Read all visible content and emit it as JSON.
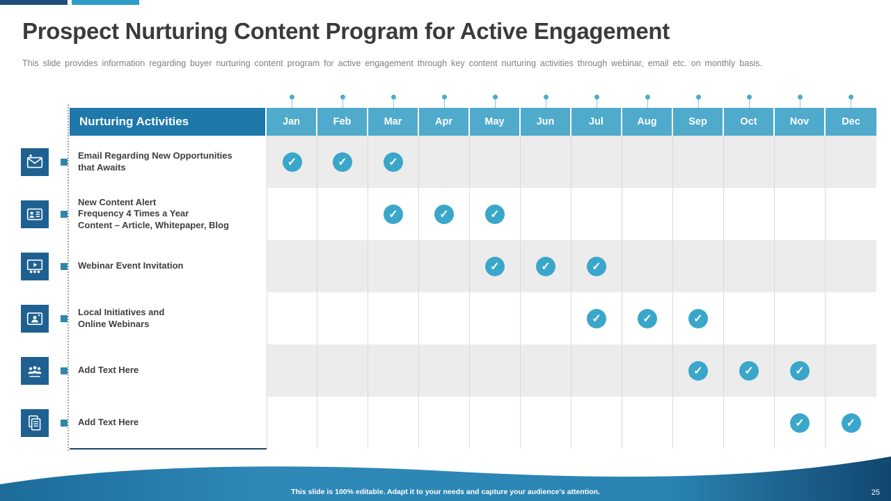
{
  "slide": {
    "title": "Prospect Nurturing Content Program for Active Engagement",
    "subtitle": "This slide provides information regarding buyer nurturing content program for active engagement through key content nurturing activities through webinar, email etc. on monthly basis.",
    "footer_note": "This slide is 100% editable. Adapt it to your needs and capture your audience's attention.",
    "page_number": "25"
  },
  "accent_colors": {
    "header_dark": "#1E78AA",
    "month_header": "#4FAACB",
    "check_circle": "#3AA7CA",
    "icon_tile": "#1E6191",
    "bullet": "#2E86AB",
    "top_bar_dark": "#1F4E79",
    "top_bar_light": "#2E9EC9",
    "wave": "#2F89B8"
  },
  "chart_data": {
    "type": "table",
    "title": "Nurturing Activities",
    "columns": [
      "Jan",
      "Feb",
      "Mar",
      "Apr",
      "May",
      "Jun",
      "Jul",
      "Aug",
      "Sep",
      "Oct",
      "Nov",
      "Dec"
    ],
    "rows": [
      {
        "icon": "email-icon",
        "label_lines": [
          "Email Regarding New Opportunities",
          "that Awaits"
        ],
        "checked_months": [
          "Jan",
          "Feb",
          "Mar"
        ]
      },
      {
        "icon": "content-alert-icon",
        "label_lines": [
          "New Content Alert",
          "Frequency 4 Times a Year",
          "Content – Article, Whitepaper, Blog"
        ],
        "checked_months": [
          "Mar",
          "Apr",
          "May"
        ]
      },
      {
        "icon": "webinar-icon",
        "label_lines": [
          "Webinar Event Invitation"
        ],
        "checked_months": [
          "May",
          "Jun",
          "Jul"
        ]
      },
      {
        "icon": "online-webinar-icon",
        "label_lines": [
          "Local Initiatives and",
          "Online Webinars"
        ],
        "checked_months": [
          "Jul",
          "Aug",
          "Sep"
        ]
      },
      {
        "icon": "audience-icon",
        "label_lines": [
          "Add Text Here"
        ],
        "checked_months": [
          "Sep",
          "Oct",
          "Nov"
        ]
      },
      {
        "icon": "notes-icon",
        "label_lines": [
          "Add Text Here"
        ],
        "checked_months": [
          "Nov",
          "Dec"
        ]
      }
    ]
  }
}
